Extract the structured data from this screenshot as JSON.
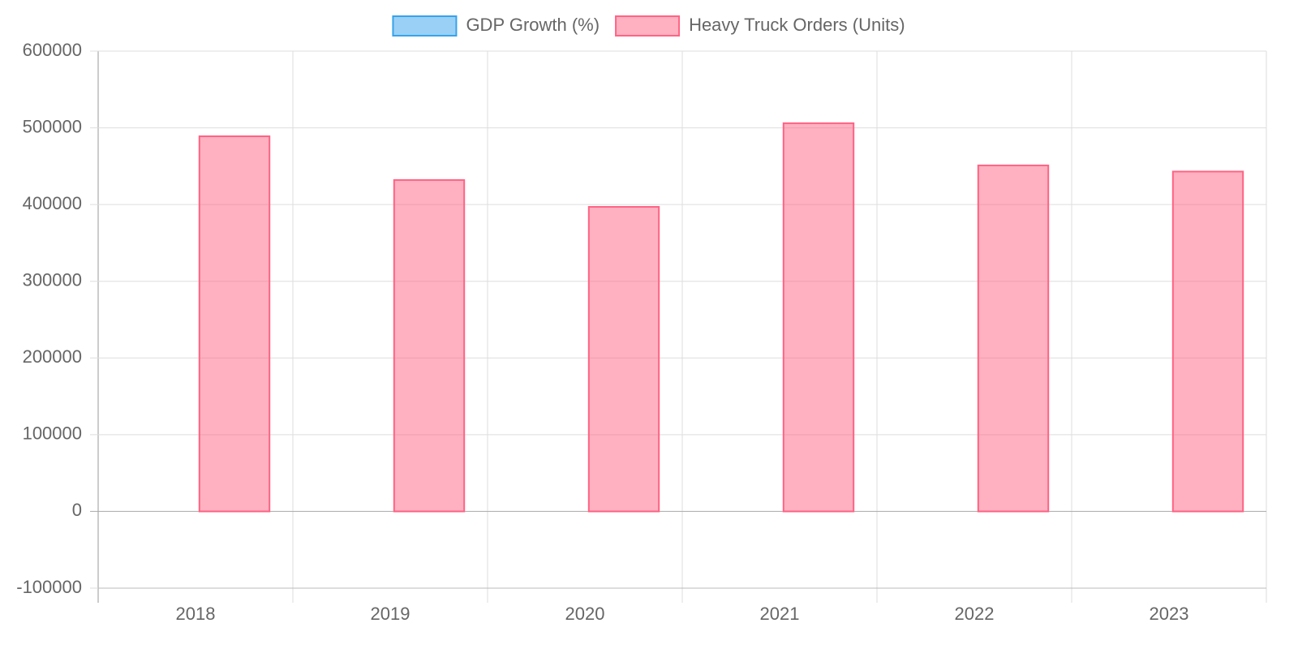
{
  "chart_data": {
    "type": "bar",
    "categories": [
      "2018",
      "2019",
      "2020",
      "2021",
      "2022",
      "2023"
    ],
    "series": [
      {
        "name": "GDP Growth (%)",
        "color": "#36a2eb",
        "values": [
          null,
          null,
          null,
          null,
          null,
          null
        ]
      },
      {
        "name": "Heavy Truck Orders (Units)",
        "color": "#ff6384",
        "values": [
          489000,
          432000,
          397000,
          506000,
          451000,
          443000
        ]
      }
    ],
    "ylim": [
      -100000,
      600000
    ],
    "yticks": [
      -100000,
      0,
      100000,
      200000,
      300000,
      400000,
      500000,
      600000
    ],
    "grid": true,
    "legend": "top"
  }
}
